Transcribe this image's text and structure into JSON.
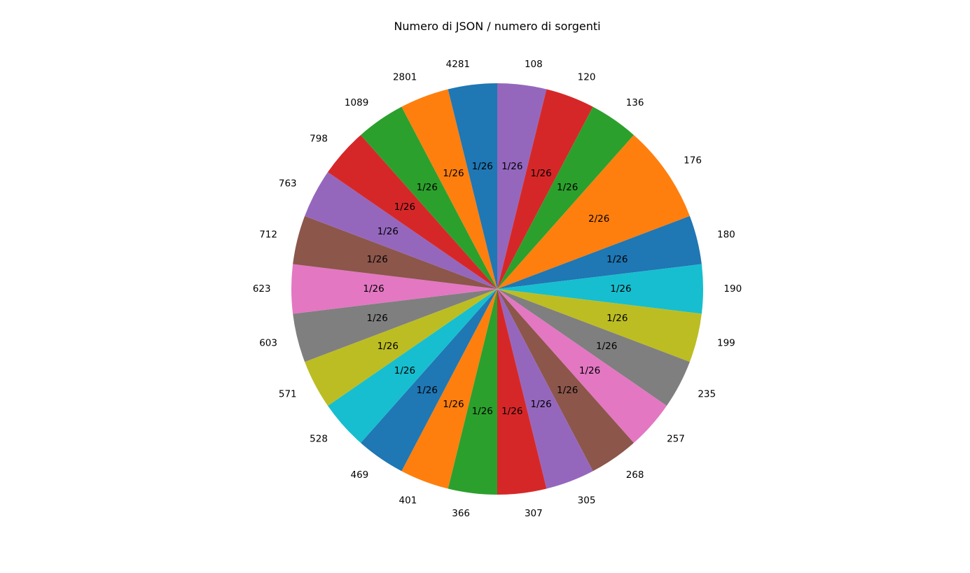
{
  "chart_data": {
    "type": "pie",
    "title": "Numero di JSON / numero di sorgenti",
    "start_angle_deg": 90,
    "direction": "clockwise",
    "categories": [
      "108",
      "120",
      "136",
      "176",
      "180",
      "190",
      "199",
      "235",
      "257",
      "268",
      "305",
      "307",
      "366",
      "401",
      "469",
      "528",
      "571",
      "603",
      "623",
      "712",
      "763",
      "798",
      "1089",
      "2801",
      "4281"
    ],
    "values": [
      1,
      1,
      1,
      2,
      1,
      1,
      1,
      1,
      1,
      1,
      1,
      1,
      1,
      1,
      1,
      1,
      1,
      1,
      1,
      1,
      1,
      1,
      1,
      1,
      1
    ],
    "slice_labels": [
      "1/26",
      "1/26",
      "1/26",
      "2/26",
      "1/26",
      "1/26",
      "1/26",
      "1/26",
      "1/26",
      "1/26",
      "1/26",
      "1/26",
      "1/26",
      "1/26",
      "1/26",
      "1/26",
      "1/26",
      "1/26",
      "1/26",
      "1/26",
      "1/26",
      "1/26",
      "1/26",
      "1/26",
      "1/26"
    ],
    "colors": [
      "#9467bd",
      "#d62728",
      "#2ca02c",
      "#ff7f0e",
      "#1f77b4",
      "#17becf",
      "#bcbd22",
      "#7f7f7f",
      "#e377c2",
      "#8c564b",
      "#9467bd",
      "#d62728",
      "#2ca02c",
      "#ff7f0e",
      "#1f77b4",
      "#17becf",
      "#bcbd22",
      "#7f7f7f",
      "#e377c2",
      "#8c564b",
      "#9467bd",
      "#d62728",
      "#2ca02c",
      "#ff7f0e",
      "#1f77b4"
    ]
  }
}
